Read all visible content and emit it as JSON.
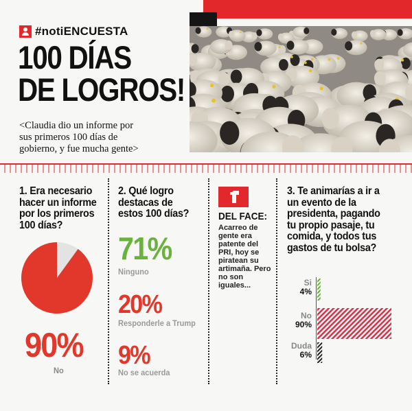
{
  "header": {
    "hashtag": "#notiENCUESTA",
    "headline_line1": "100 DÍAS",
    "headline_line2": "DE LOGROS!",
    "subtitle": "<Claudia dio un informe por sus primeros 100 días de gobierno, y fue mucha gente>"
  },
  "photo": {
    "subject": "sheep-flock-photo"
  },
  "q1": {
    "question": "1. Era necesario hacer un informe por los primeros 100 días?",
    "value": 90,
    "percent_label": "90%",
    "answer_label": "No",
    "colors": {
      "main": "#e2382c",
      "rest": "#e3e3e3"
    }
  },
  "q2": {
    "question": "2. Qué logro destacas de estos 100 días?",
    "items": [
      {
        "percent": "71%",
        "label": "Ninguno",
        "color": "#6ab23e"
      },
      {
        "percent": "20%",
        "label": "Responderle a Trump",
        "color": "#e2382c"
      },
      {
        "percent": "9%",
        "label": "No se acuerda",
        "color": "#e2382c"
      }
    ]
  },
  "face": {
    "title": "DEL FACE:",
    "body": "Acarreo de gente era patente del PRI, hoy se piratean su artimaña. Pero no son iguales..."
  },
  "q3": {
    "question": "3. Te animarías a ir a un evento de la presidenta, pagando tu propio pasaje, tu comida, y todos tus gastos de tu bolsa?",
    "chart_data": {
      "type": "bar",
      "categories": [
        "Si",
        "No",
        "Duda"
      ],
      "values": [
        4,
        90,
        6
      ],
      "value_labels": [
        "4%",
        "90%",
        "6%"
      ],
      "colors": [
        "#6ab23e",
        "#d8324a",
        "#222222"
      ]
    }
  }
}
